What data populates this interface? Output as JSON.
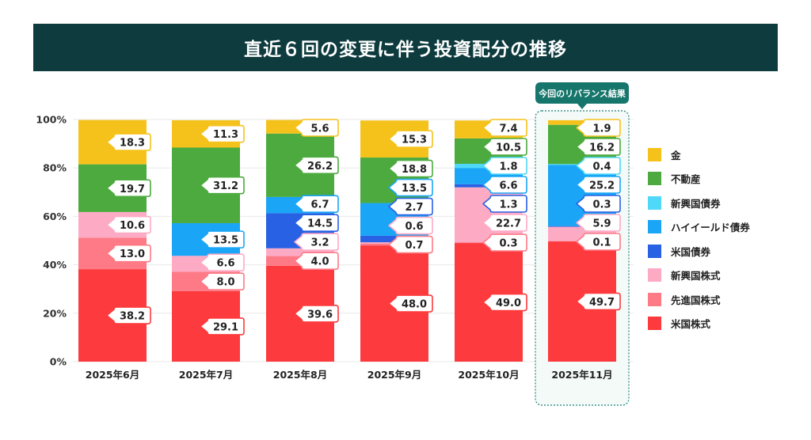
{
  "title": "直近６回の変更に伴う投資配分の推移",
  "highlight_label": "今回のリバランス結果",
  "chart_data": {
    "type": "bar",
    "stacked": true,
    "title": "直近６回の変更に伴う投資配分の推移",
    "categories": [
      "2025年6月",
      "2025年7月",
      "2025年8月",
      "2025年9月",
      "2025年10月",
      "2025年11月"
    ],
    "y_ticks": [
      "0%",
      "20%",
      "40%",
      "60%",
      "80%",
      "100%"
    ],
    "ylim": [
      0,
      100
    ],
    "legend_position": "right",
    "highlight_category": "2025年11月",
    "series": [
      {
        "name": "米国株式",
        "color": "#fd3a3d",
        "values": [
          38.2,
          29.1,
          39.6,
          48.0,
          49.0,
          49.7
        ],
        "labels": [
          "38.2",
          "29.1",
          "39.6",
          "48.0",
          "49.0",
          "49.7"
        ]
      },
      {
        "name": "先進国株式",
        "color": "#fd7a86",
        "values": [
          13.0,
          8.0,
          4.0,
          0.7,
          0.3,
          0.1
        ],
        "labels": [
          "13.0",
          "8.0",
          "4.0",
          "0.7",
          "0.3",
          "0.1"
        ]
      },
      {
        "name": "新興国株式",
        "color": "#fdaac5",
        "values": [
          10.6,
          6.6,
          3.2,
          0.6,
          22.7,
          5.9
        ],
        "labels": [
          "10.6",
          "6.6",
          "3.2",
          "0.6",
          "22.7",
          "5.9"
        ]
      },
      {
        "name": "米国債券",
        "color": "#2861e4",
        "values": [
          0,
          0,
          14.5,
          2.7,
          1.3,
          0.3
        ],
        "labels": [
          "",
          "",
          "14.5",
          "2.7",
          "1.3",
          "0.3"
        ]
      },
      {
        "name": "ハイイールド債券",
        "color": "#1aa5f6",
        "values": [
          0,
          13.5,
          6.7,
          13.5,
          6.6,
          25.2
        ],
        "labels": [
          "",
          "13.5",
          "6.7",
          "13.5",
          "6.6",
          "25.2"
        ]
      },
      {
        "name": "新興国債券",
        "color": "#4fd8f8",
        "values": [
          0,
          0,
          0,
          0,
          1.8,
          0.4
        ],
        "labels": [
          "",
          "",
          "",
          "",
          "1.8",
          "0.4"
        ]
      },
      {
        "name": "不動産",
        "color": "#4caa3f",
        "values": [
          19.7,
          31.2,
          26.2,
          18.8,
          10.5,
          16.2
        ],
        "labels": [
          "19.7",
          "31.2",
          "26.2",
          "18.8",
          "10.5",
          "16.2"
        ]
      },
      {
        "name": "金",
        "color": "#f5c21c",
        "values": [
          18.3,
          11.3,
          5.6,
          15.3,
          7.4,
          1.9
        ],
        "labels": [
          "18.3",
          "11.3",
          "5.6",
          "15.3",
          "7.4",
          "1.9"
        ]
      }
    ],
    "legend_order": [
      "金",
      "不動産",
      "新興国債券",
      "ハイイールド債券",
      "米国債券",
      "新興国株式",
      "先進国株式",
      "米国株式"
    ]
  }
}
